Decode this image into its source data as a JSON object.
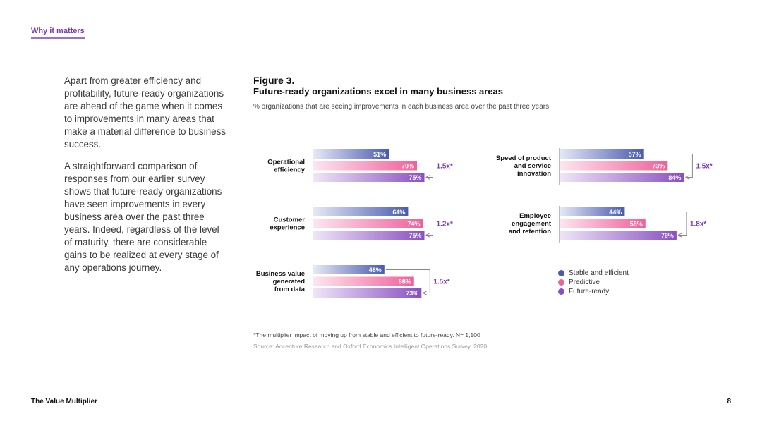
{
  "header": {
    "section_tag": "Why it matters"
  },
  "intro": {
    "paragraph1": "Apart from greater efficiency and profitability, future-ready organizations are ahead of the game when it comes to improvements in many areas that make a material difference to business success.",
    "paragraph2": "A straightforward comparison of responses from our earlier survey shows that future-ready organizations have seen improvements in every business area over the past three years. Indeed, regardless of the level of maturity, there are considerable gains to be realized at every stage of any operations journey."
  },
  "figure": {
    "label": "Figure 3.",
    "title": "Future-ready organizations excel in many business areas",
    "subtitle": "% organizations that are seeing improvements in each business area over the past three years",
    "footnote": "*The multiplier impact of moving up from stable and efficient to future-ready. N= 1,100",
    "source": "Source: Accenture Research and Oxford Economics Intelligent Operations Survey, 2020"
  },
  "legend": {
    "items": [
      {
        "label": "Stable and efficient",
        "color": "#4a5bb0"
      },
      {
        "label": "Predictive",
        "color": "#f0609a"
      },
      {
        "label": "Future-ready",
        "color": "#8a4fc2"
      }
    ]
  },
  "chart_data": {
    "type": "bar",
    "orientation": "horizontal",
    "title": "Future-ready organizations excel in many business areas",
    "subtitle": "% organizations that are seeing improvements in each business area over the past three years",
    "unit": "%",
    "xlim": [
      0,
      100
    ],
    "series_names": [
      "Stable and efficient",
      "Predictive",
      "Future-ready"
    ],
    "colors": [
      "#4a5bb0",
      "#f0609a",
      "#8a4fc2"
    ],
    "groups": [
      {
        "category": "Operational efficiency",
        "label_lines": [
          "Operational",
          "efficiency"
        ],
        "values": [
          51,
          70,
          75
        ],
        "multiplier": "1.5x*"
      },
      {
        "category": "Customer experience",
        "label_lines": [
          "Customer",
          "experience"
        ],
        "values": [
          64,
          74,
          75
        ],
        "multiplier": "1.2x*"
      },
      {
        "category": "Business value generated from data",
        "label_lines": [
          "Business value",
          "generated",
          "from data"
        ],
        "values": [
          48,
          68,
          73
        ],
        "multiplier": "1.5x*"
      },
      {
        "category": "Speed of product and service innovation",
        "label_lines": [
          "Speed of product",
          "and service",
          "innovation"
        ],
        "values": [
          57,
          73,
          84
        ],
        "multiplier": "1.5x*"
      },
      {
        "category": "Employee engagement and retention",
        "label_lines": [
          "Employee",
          "engagement",
          "and retention"
        ],
        "values": [
          44,
          58,
          79
        ],
        "multiplier": "1.8x*"
      }
    ],
    "grid": false,
    "legend_position": "bottom-right"
  },
  "footer": {
    "title": "The Value Multiplier",
    "page": "8"
  }
}
